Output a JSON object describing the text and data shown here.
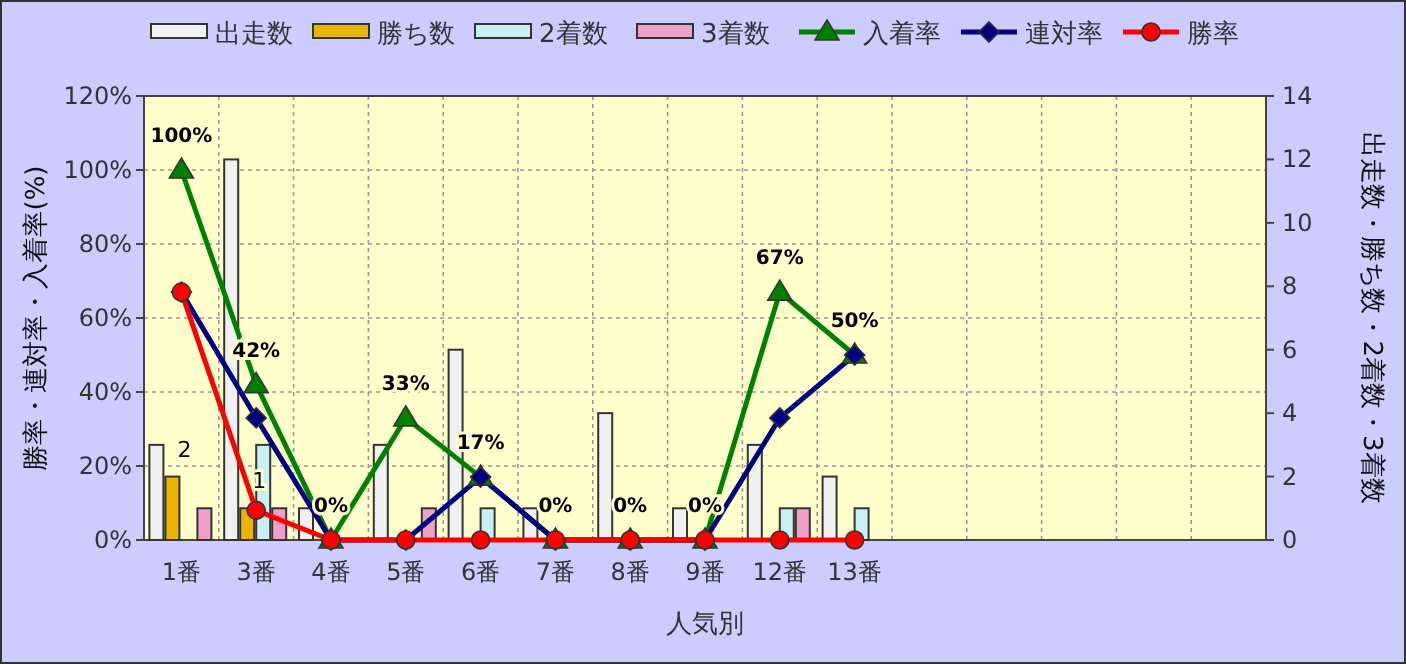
{
  "chart_data": {
    "type": "bar",
    "xlabel": "人気別",
    "ylabel": "勝率・連対率・入着率(%)",
    "y2label": "出走数・勝ち数・2着数・3着数",
    "categories": [
      "1番",
      "3番",
      "4番",
      "5番",
      "6番",
      "7番",
      "8番",
      "9番",
      "12番",
      "13番",
      null,
      null,
      null,
      null,
      null
    ],
    "series": [
      {
        "name": "出走数",
        "axis": "y2",
        "color": "#f0f0f0",
        "values": [
          3,
          12,
          1,
          3,
          6,
          1,
          4,
          1,
          3,
          2,
          null,
          null,
          null,
          null,
          null
        ]
      },
      {
        "name": "勝ち数",
        "axis": "y2",
        "color": "#e8b400",
        "values": [
          2,
          1,
          0,
          0,
          0,
          0,
          0,
          0,
          0,
          0,
          null,
          null,
          null,
          null,
          null
        ],
        "value_labels": [
          "2",
          "1",
          null,
          null,
          null,
          null,
          null,
          null,
          null,
          null,
          null,
          null,
          null,
          null,
          null
        ]
      },
      {
        "name": "2着数",
        "axis": "y2",
        "color": "#c8f0f0",
        "values": [
          0,
          3,
          0,
          0,
          1,
          0,
          0,
          0,
          1,
          1,
          null,
          null,
          null,
          null,
          null
        ]
      },
      {
        "name": "3着数",
        "axis": "y2",
        "color": "#f0a0c8",
        "values": [
          1,
          1,
          0,
          1,
          0,
          0,
          0,
          0,
          1,
          0,
          null,
          null,
          null,
          null,
          null
        ]
      },
      {
        "name": "入着率",
        "type": "line",
        "color": "#008000",
        "marker": "triangle",
        "values": [
          100,
          42,
          0,
          33,
          17,
          0,
          0,
          0,
          67,
          50,
          null,
          null,
          null,
          null,
          null
        ],
        "value_labels": [
          "100%",
          "42%",
          "0%",
          "33%",
          "17%",
          "0%",
          "0%",
          "0%",
          "67%",
          "50%",
          null,
          null,
          null,
          null,
          null
        ]
      },
      {
        "name": "連対率",
        "type": "line",
        "color": "#000080",
        "marker": "diamond",
        "values": [
          67,
          33,
          0,
          0,
          17,
          0,
          0,
          0,
          33,
          50,
          null,
          null,
          null,
          null,
          null
        ]
      },
      {
        "name": "勝率",
        "type": "line",
        "color": "#ff0000",
        "marker": "circle",
        "values": [
          67,
          8,
          0,
          0,
          0,
          0,
          0,
          0,
          0,
          0,
          null,
          null,
          null,
          null,
          null
        ]
      }
    ],
    "ylim": [
      0,
      120
    ],
    "yticks": [
      {
        "value": 0,
        "label": "0%"
      },
      {
        "value": 20,
        "label": "20%"
      },
      {
        "value": 40,
        "label": "40%"
      },
      {
        "value": 60,
        "label": "60%"
      },
      {
        "value": 80,
        "label": "80%"
      },
      {
        "value": 100,
        "label": "100%"
      },
      {
        "value": 120,
        "label": "120%"
      }
    ],
    "y2lim": [
      0,
      14
    ],
    "y2ticks": [
      0,
      2,
      4,
      6,
      8,
      10,
      12,
      14
    ],
    "grid": true,
    "legend": "top"
  }
}
